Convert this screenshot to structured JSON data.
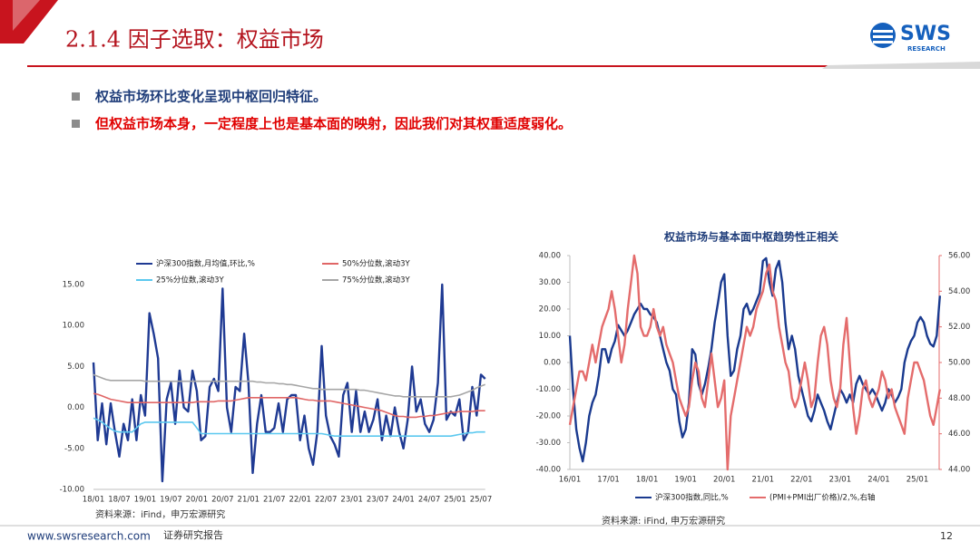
{
  "header": {
    "title": "2.1.4 因子选取：权益市场"
  },
  "logo": {
    "name": "SWS",
    "sub": "RESEARCH"
  },
  "bullets": [
    "权益市场环比变化呈现中枢回归特征。",
    "但权益市场本身，一定程度上也是基本面的映射，因此我们对其权重适度弱化。"
  ],
  "chart_data": [
    {
      "type": "line",
      "legend": "top",
      "source": "资料来源：iFind，申万宏源研究",
      "categories": [
        "18/01",
        null,
        null,
        null,
        null,
        null,
        "18/07",
        null,
        null,
        null,
        null,
        null,
        "19/01",
        null,
        null,
        null,
        null,
        null,
        "19/07",
        null,
        null,
        null,
        null,
        null,
        "20/01",
        null,
        null,
        null,
        null,
        null,
        "20/07",
        null,
        null,
        null,
        null,
        null,
        "21/01",
        null,
        null,
        null,
        null,
        null,
        "21/07",
        null,
        null,
        null,
        null,
        null,
        "22/01",
        null,
        null,
        null,
        null,
        null,
        "22/07",
        null,
        null,
        null,
        null,
        null,
        "23/01",
        null,
        null,
        null,
        null,
        null,
        "23/07",
        null,
        null,
        null,
        null,
        null,
        "24/01",
        null,
        null,
        null,
        null,
        null,
        "24/07",
        null,
        null,
        null,
        null,
        null,
        "25/01",
        null,
        null,
        null,
        null,
        null,
        "25/07",
        null
      ],
      "ylim": [
        -10,
        15
      ],
      "yticks": [
        {
          "value": -10,
          "label": "-10.00"
        },
        {
          "value": -5,
          "label": "-5.00"
        },
        {
          "value": 0,
          "label": "0.00"
        },
        {
          "value": 5,
          "label": "5.00"
        },
        {
          "value": 10,
          "label": "10.00"
        },
        {
          "value": 15,
          "label": "15.00"
        }
      ],
      "series": [
        {
          "name": "沪深300指数,月均值,环比,%",
          "color": "#1f3a93",
          "values": [
            5.5,
            -4,
            0.5,
            -4.5,
            0.5,
            -3,
            -6,
            -2,
            -4,
            1,
            -4,
            1.5,
            -1,
            11.5,
            9,
            6,
            -9,
            1,
            3,
            -2,
            4.5,
            0,
            -0.5,
            4.5,
            2,
            -4,
            -3.5,
            2.5,
            3.5,
            2,
            14.5,
            0,
            -3,
            2.5,
            2,
            9,
            3,
            -8,
            -2,
            1.5,
            -3,
            -3,
            -2.5,
            0.5,
            -3,
            1,
            1.5,
            1.5,
            -4,
            -1,
            -5,
            -7,
            -3,
            7.5,
            -1,
            -3.5,
            -4.5,
            -6,
            1.5,
            3,
            -3,
            2,
            -3,
            -0.5,
            -3,
            -1.5,
            1,
            -4,
            -1,
            -3.5,
            0,
            -3,
            -5,
            -1.5,
            5,
            -0.5,
            1,
            -2,
            -3,
            -1.5,
            3,
            15,
            -1.5,
            -0.5,
            -1,
            1,
            -4,
            -3,
            2.5,
            -1,
            4,
            3.5
          ]
        },
        {
          "name": "50%分位数,滚动3Y",
          "color": "#e06666",
          "values": [
            1.7,
            1.6,
            1.4,
            1.2,
            1.0,
            0.9,
            0.8,
            0.7,
            0.6,
            0.6,
            0.6,
            0.6,
            0.6,
            0.6,
            0.6,
            0.6,
            0.6,
            0.6,
            0.6,
            0.6,
            0.6,
            0.6,
            0.6,
            0.6,
            0.7,
            0.7,
            0.7,
            0.7,
            0.7,
            0.8,
            0.8,
            0.8,
            0.8,
            0.9,
            1.0,
            1.1,
            1.2,
            1.2,
            1.2,
            1.2,
            1.2,
            1.2,
            1.2,
            1.2,
            1.2,
            1.2,
            1.2,
            1.2,
            1.1,
            1.0,
            0.9,
            0.9,
            0.8,
            0.8,
            0.8,
            0.8,
            0.7,
            0.6,
            0.5,
            0.4,
            0.3,
            0.2,
            0.1,
            0.0,
            -0.1,
            -0.2,
            -0.3,
            -0.4,
            -0.6,
            -0.8,
            -1.0,
            -1.1,
            -1.1,
            -1.2,
            -1.2,
            -1.2,
            -1.1,
            -1.1,
            -1.0,
            -1.0,
            -0.9,
            -0.8,
            -0.7,
            -0.6,
            -0.6,
            -0.5,
            -0.5,
            -0.5,
            -0.5,
            -0.4,
            -0.4,
            -0.4
          ]
        },
        {
          "name": "25%分位数,滚动3Y",
          "color": "#5bc8ef",
          "values": [
            -1.3,
            -1.5,
            -1.8,
            -2.2,
            -2.6,
            -2.9,
            -3.0,
            -3.0,
            -3.0,
            -3.0,
            -2.5,
            -2.0,
            -1.8,
            -1.8,
            -1.8,
            -1.8,
            -1.8,
            -1.8,
            -1.8,
            -1.8,
            -1.8,
            -1.8,
            -1.8,
            -1.8,
            -2.5,
            -3.2,
            -3.2,
            -3.2,
            -3.2,
            -3.2,
            -3.2,
            -3.2,
            -3.2,
            -3.2,
            -3.2,
            -3.2,
            -3.2,
            -3.2,
            -3.2,
            -3.2,
            -3.2,
            -3.2,
            -3.2,
            -3.2,
            -3.2,
            -3.2,
            -3.2,
            -3.2,
            -3.2,
            -3.2,
            -3.2,
            -3.2,
            -3.2,
            -3.2,
            -3.3,
            -3.4,
            -3.5,
            -3.5,
            -3.5,
            -3.5,
            -3.5,
            -3.5,
            -3.5,
            -3.5,
            -3.5,
            -3.5,
            -3.5,
            -3.5,
            -3.5,
            -3.5,
            -3.5,
            -3.5,
            -3.5,
            -3.5,
            -3.5,
            -3.5,
            -3.5,
            -3.5,
            -3.5,
            -3.5,
            -3.5,
            -3.5,
            -3.5,
            -3.5,
            -3.4,
            -3.3,
            -3.2,
            -3.1,
            -3.1,
            -3.0,
            -3.0,
            -3.0
          ]
        },
        {
          "name": "75%分位数,滚动3Y",
          "color": "#a6a6a6",
          "values": [
            4.0,
            3.8,
            3.6,
            3.4,
            3.3,
            3.3,
            3.3,
            3.3,
            3.3,
            3.3,
            3.3,
            3.3,
            3.2,
            3.2,
            3.2,
            3.2,
            3.2,
            3.2,
            3.2,
            3.2,
            3.2,
            3.2,
            3.2,
            3.2,
            3.2,
            3.2,
            3.2,
            3.2,
            3.2,
            3.2,
            3.2,
            3.2,
            3.2,
            3.2,
            3.2,
            3.2,
            3.2,
            3.2,
            3.1,
            3.1,
            3.0,
            3.0,
            3.0,
            2.9,
            2.9,
            2.8,
            2.8,
            2.7,
            2.6,
            2.5,
            2.4,
            2.3,
            2.3,
            2.2,
            2.2,
            2.2,
            2.2,
            2.2,
            2.2,
            2.2,
            2.2,
            2.2,
            2.1,
            2.1,
            2.0,
            1.9,
            1.8,
            1.7,
            1.6,
            1.5,
            1.4,
            1.4,
            1.3,
            1.3,
            1.3,
            1.3,
            1.3,
            1.3,
            1.3,
            1.3,
            1.3,
            1.3,
            1.3,
            1.3,
            1.4,
            1.5,
            1.7,
            1.9,
            2.1,
            2.4,
            2.6,
            2.8
          ]
        }
      ]
    },
    {
      "type": "line",
      "legend": "bottom",
      "title": "权益市场与基本面中枢趋势性正相关",
      "source": "资料来源: iFind, 申万宏源研究",
      "categories": [
        "16/01",
        null,
        null,
        null,
        null,
        null,
        null,
        null,
        null,
        null,
        null,
        null,
        "17/01",
        null,
        null,
        null,
        null,
        null,
        null,
        null,
        null,
        null,
        null,
        null,
        "18/01",
        null,
        null,
        null,
        null,
        null,
        null,
        null,
        null,
        null,
        null,
        null,
        "19/01",
        null,
        null,
        null,
        null,
        null,
        null,
        null,
        null,
        null,
        null,
        null,
        "20/01",
        null,
        null,
        null,
        null,
        null,
        null,
        null,
        null,
        null,
        null,
        null,
        "21/01",
        null,
        null,
        null,
        null,
        null,
        null,
        null,
        null,
        null,
        null,
        null,
        "22/01",
        null,
        null,
        null,
        null,
        null,
        null,
        null,
        null,
        null,
        null,
        null,
        "23/01",
        null,
        null,
        null,
        null,
        null,
        null,
        null,
        null,
        null,
        null,
        null,
        "24/01",
        null,
        null,
        null,
        null,
        null,
        null,
        null,
        null,
        null,
        null,
        null,
        "25/01",
        null,
        null,
        null,
        null,
        null,
        null,
        null
      ],
      "ylim": [
        -40,
        40
      ],
      "yticks": [
        {
          "value": -40,
          "label": "-40.00"
        },
        {
          "value": -30,
          "label": "-30.00"
        },
        {
          "value": -20,
          "label": "-20.00"
        },
        {
          "value": -10,
          "label": "-10.00"
        },
        {
          "value": 0,
          "label": "0.00"
        },
        {
          "value": 10,
          "label": "10.00"
        },
        {
          "value": 20,
          "label": "20.00"
        },
        {
          "value": 30,
          "label": "30.00"
        },
        {
          "value": 40,
          "label": "40.00"
        }
      ],
      "y2lim": [
        44,
        56
      ],
      "y2ticks": [
        {
          "value": 44,
          "label": "44.00"
        },
        {
          "value": 46,
          "label": "46.00"
        },
        {
          "value": 48,
          "label": "48.00"
        },
        {
          "value": 50,
          "label": "50.00"
        },
        {
          "value": 52,
          "label": "52.00"
        },
        {
          "value": 54,
          "label": "54.00"
        },
        {
          "value": 56,
          "label": "56.00"
        }
      ],
      "series": [
        {
          "name": "沪深300指数,同比,%",
          "color": "#1a3a8f",
          "values": [
            10,
            -10,
            -25,
            -32,
            -37,
            -30,
            -20,
            -15,
            -12,
            -5,
            5,
            5,
            0,
            5,
            8,
            14,
            12,
            10,
            12,
            15,
            18,
            20,
            22,
            20,
            20,
            18,
            17,
            15,
            10,
            5,
            0,
            -3,
            -10,
            -12,
            -22,
            -28,
            -25,
            -15,
            5,
            3,
            -8,
            -12,
            -8,
            -2,
            5,
            15,
            22,
            30,
            33,
            10,
            -5,
            -3,
            5,
            10,
            20,
            22,
            18,
            20,
            23,
            26,
            38,
            39,
            30,
            25,
            35,
            38,
            30,
            15,
            5,
            10,
            5,
            -5,
            -10,
            -15,
            -20,
            -22,
            -18,
            -12,
            -15,
            -18,
            -22,
            -25,
            -20,
            -15,
            -10,
            -12,
            -15,
            -12,
            -15,
            -8,
            -5,
            -8,
            -10,
            -12,
            -10,
            -12,
            -15,
            -18,
            -15,
            -10,
            -12,
            -15,
            -13,
            -10,
            0,
            5,
            8,
            10,
            15,
            17,
            15,
            10,
            7,
            6,
            10,
            25
          ]
        },
        {
          "name": "(PMI+PMI出厂价格)/2,%,右轴",
          "color": "#e46c6c",
          "axis": "y2",
          "values": [
            46.5,
            47.5,
            48.5,
            49.5,
            49.5,
            49,
            50,
            51,
            50,
            51,
            52,
            52.5,
            53,
            54,
            53,
            51.5,
            50,
            51,
            53,
            54.5,
            56,
            55,
            52,
            51.5,
            51.5,
            52,
            53,
            52,
            51.5,
            52,
            51,
            50.5,
            50,
            49,
            48,
            47.5,
            47,
            47.5,
            49,
            50,
            49.5,
            48,
            47.5,
            49,
            50.5,
            49,
            47.5,
            48,
            49,
            44,
            47,
            48,
            49,
            50,
            51,
            52,
            51.5,
            52,
            53,
            53.5,
            54,
            55,
            55.5,
            54,
            53.5,
            52,
            51,
            50,
            49.5,
            48,
            47.5,
            48,
            49,
            50,
            49,
            47.5,
            48,
            50,
            51.5,
            52,
            51,
            49,
            48,
            47.5,
            48.5,
            51,
            52.5,
            50,
            47.5,
            46,
            47,
            48.5,
            49,
            48,
            47.5,
            48,
            48.5,
            49.5,
            49,
            48,
            48.5,
            47.5,
            47,
            46.5,
            46,
            48,
            49,
            50,
            50,
            49.5,
            49,
            48,
            47,
            46.5,
            47.5,
            48.5
          ]
        }
      ]
    }
  ],
  "footer": {
    "url": "www.swsresearch.com",
    "label": "证券研究报告",
    "page": 12
  }
}
